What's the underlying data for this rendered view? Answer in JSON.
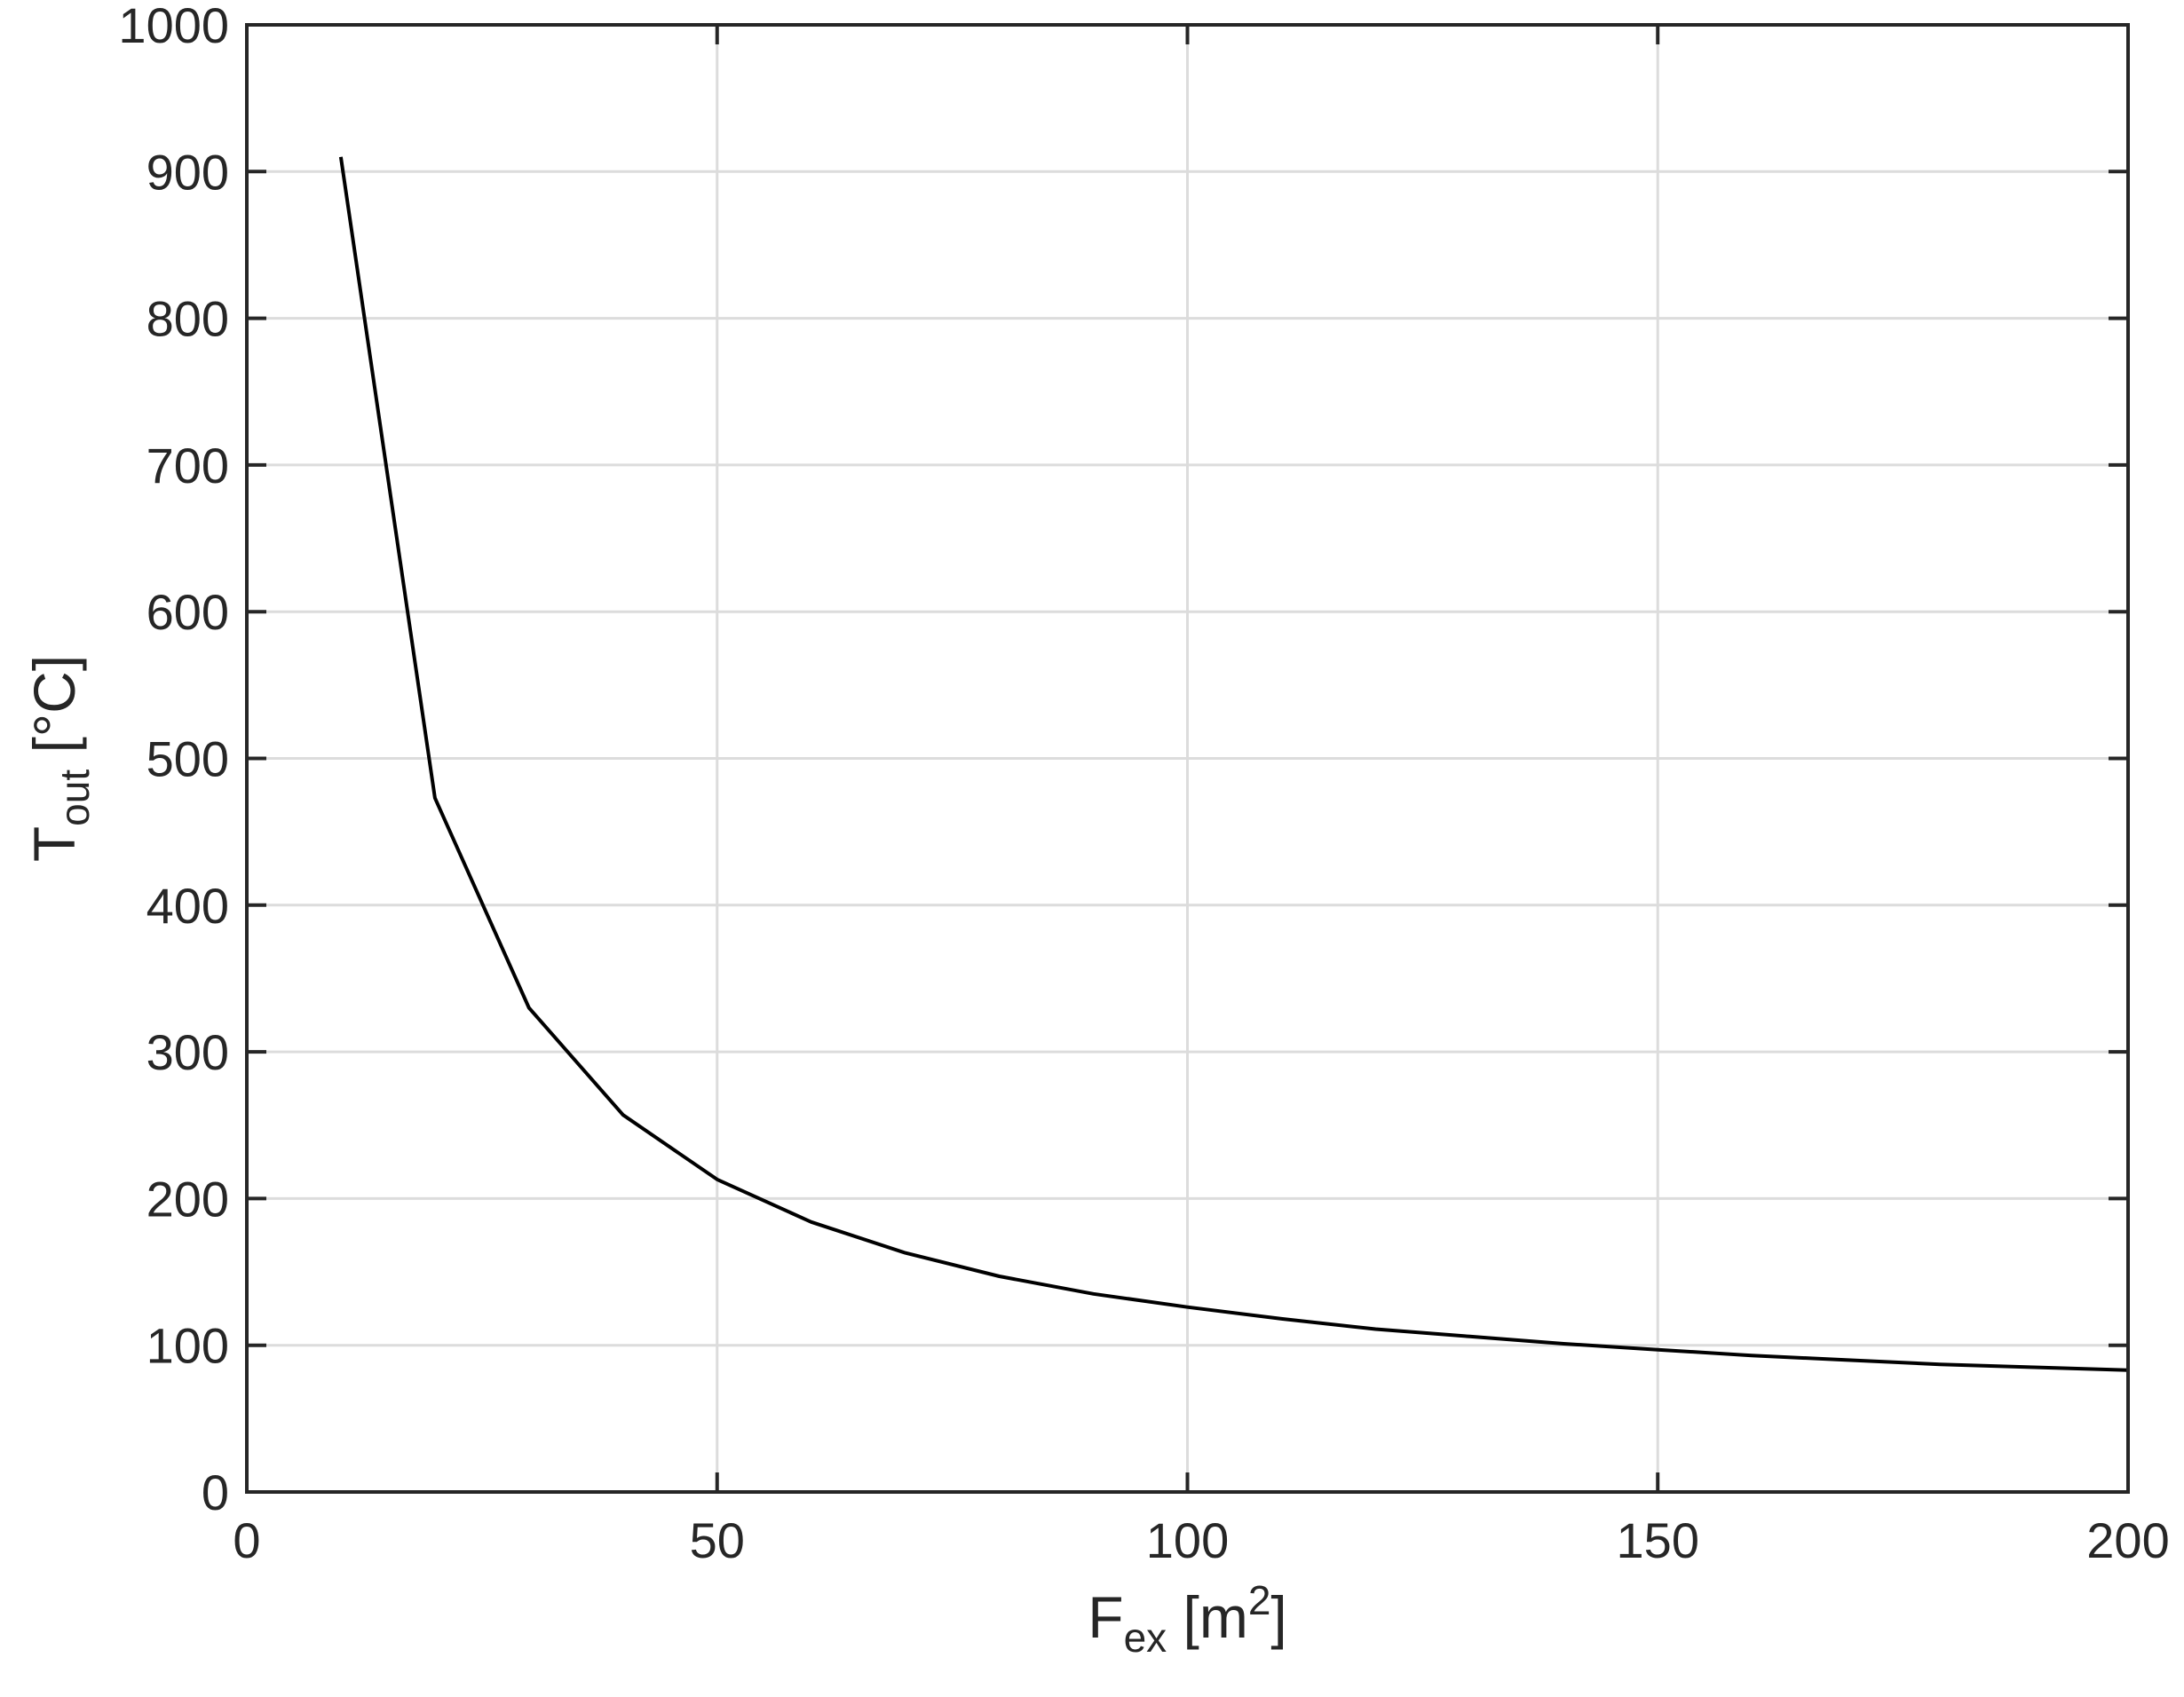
{
  "chart_data": {
    "type": "line",
    "title": "",
    "xlabel": {
      "main": "F",
      "sub": "ex",
      "unit_open": " [m",
      "sup": "2",
      "unit_close": "]"
    },
    "ylabel": {
      "main": "T",
      "sub": "out",
      "unit": " [°C]"
    },
    "xlim": [
      0,
      200
    ],
    "ylim": [
      0,
      1000
    ],
    "xticks": [
      0,
      50,
      100,
      150,
      200
    ],
    "yticks": [
      0,
      100,
      200,
      300,
      400,
      500,
      600,
      700,
      800,
      900,
      1000
    ],
    "grid": true,
    "series": [
      {
        "color": "#000000",
        "x": [
          10,
          20,
          30,
          40,
          50,
          60,
          70,
          80,
          90,
          100,
          110,
          120,
          130,
          140,
          150,
          160,
          170,
          180,
          190,
          200
        ],
        "y": [
          910,
          473,
          330,
          257,
          213,
          184,
          163,
          147,
          135,
          126,
          118,
          111,
          106,
          101,
          97,
          93,
          90,
          87,
          85,
          83
        ]
      }
    ]
  }
}
